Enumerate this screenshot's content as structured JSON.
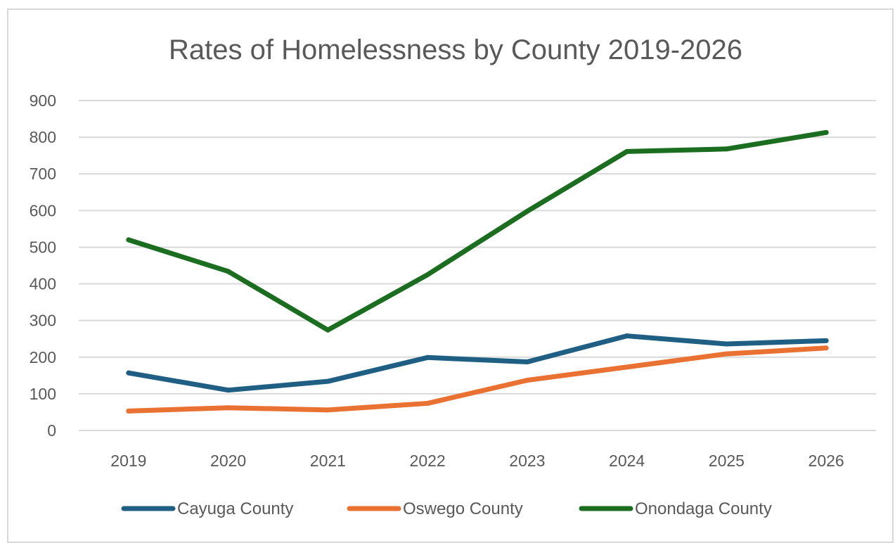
{
  "chart_data": {
    "type": "line",
    "title": "Rates of Homelessness by County 2019-2026",
    "xlabel": "",
    "ylabel": "",
    "categories": [
      "2019",
      "2020",
      "2021",
      "2022",
      "2023",
      "2024",
      "2025",
      "2026"
    ],
    "ylim": [
      0,
      900
    ],
    "yticks": [
      "0",
      "100",
      "200",
      "300",
      "400",
      "500",
      "600",
      "700",
      "800",
      "900"
    ],
    "grid": true,
    "legend_position": "bottom",
    "series": [
      {
        "name": "Cayuga County",
        "color": "#1f5f83",
        "values": [
          157,
          110,
          134,
          199,
          187,
          258,
          236,
          245
        ]
      },
      {
        "name": "Oswego County",
        "color": "#e97132",
        "values": [
          53,
          62,
          56,
          74,
          137,
          173,
          209,
          225
        ]
      },
      {
        "name": "Onondaga County",
        "color": "#1b6e1f",
        "values": [
          520,
          434,
          274,
          425,
          598,
          761,
          768,
          813
        ]
      }
    ]
  }
}
